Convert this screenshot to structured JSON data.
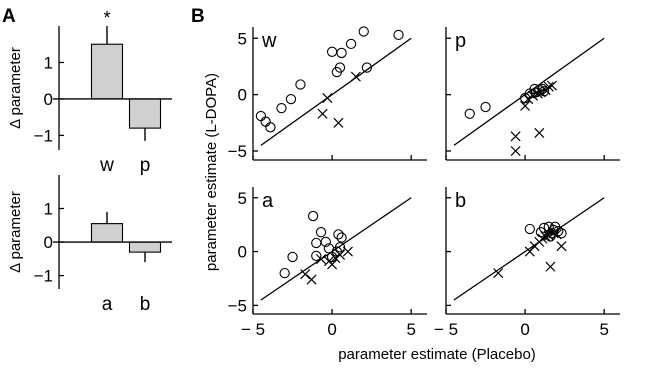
{
  "panel_labels": {
    "a": "A",
    "b": "B"
  },
  "chart_data": [
    {
      "type": "bar",
      "panel": "A-top",
      "categories": [
        "w",
        "p"
      ],
      "values": [
        1.5,
        -0.8
      ],
      "errors": [
        0.5,
        0.35
      ],
      "significance": [
        "*",
        ""
      ],
      "ylabel": "Δ parameter",
      "ylim": [
        -1.4,
        2.0
      ],
      "yticks": [
        -1,
        0,
        1
      ],
      "ytick_labels": [
        "−1",
        "0",
        "1"
      ]
    },
    {
      "type": "bar",
      "panel": "A-bottom",
      "categories": [
        "a",
        "b"
      ],
      "values": [
        0.55,
        -0.3
      ],
      "errors": [
        0.35,
        0.3
      ],
      "significance": [
        "",
        ""
      ],
      "ylabel": "Δ parameter",
      "ylim": [
        -1.4,
        2.0
      ],
      "yticks": [
        -1,
        0,
        1
      ],
      "ytick_labels": [
        "−1",
        "0",
        "1"
      ]
    },
    {
      "type": "scatter",
      "panel": "B",
      "xlabel": "parameter estimate (Placebo)",
      "ylabel": "parameter estimate (L-DOPA)",
      "xlim": [
        -5,
        6
      ],
      "ylim": [
        -5.8,
        6
      ],
      "xticks": [
        -5,
        0,
        5
      ],
      "xtick_labels": [
        "− 5",
        "0",
        "5"
      ],
      "yticks": [
        -5,
        0,
        5
      ],
      "ytick_labels": [
        "−5",
        "0",
        "5"
      ],
      "identity_line": [
        -4.5,
        5
      ],
      "subplots": [
        {
          "name": "w",
          "circles": [
            [
              -4.5,
              -1.9
            ],
            [
              -4.2,
              -2.4
            ],
            [
              -3.9,
              -2.9
            ],
            [
              -3.2,
              -1.2
            ],
            [
              -2.6,
              -0.4
            ],
            [
              -2.0,
              0.9
            ],
            [
              0,
              3.8
            ],
            [
              0.3,
              2.0
            ],
            [
              0.5,
              2.4
            ],
            [
              0.6,
              3.7
            ],
            [
              1.2,
              4.5
            ],
            [
              2.0,
              5.6
            ],
            [
              2.2,
              2.4
            ],
            [
              4.2,
              5.3
            ]
          ],
          "crosses": [
            [
              -0.3,
              -0.3
            ],
            [
              -0.6,
              -1.7
            ],
            [
              0.4,
              -2.5
            ],
            [
              1.5,
              1.6
            ]
          ]
        },
        {
          "name": "p",
          "circles": [
            [
              -3.5,
              -1.7
            ],
            [
              -2.5,
              -1.1
            ],
            [
              0.0,
              -0.3
            ],
            [
              0.3,
              0.1
            ],
            [
              0.6,
              0.5
            ],
            [
              0.7,
              0.2
            ],
            [
              0.9,
              0.4
            ],
            [
              1.1,
              0.5
            ],
            [
              1.2,
              0.3
            ]
          ],
          "crosses": [
            [
              -0.6,
              -3.7
            ],
            [
              -0.6,
              -5.0
            ],
            [
              0.0,
              -1.0
            ],
            [
              0.2,
              -0.4
            ],
            [
              0.5,
              -0.1
            ],
            [
              0.8,
              0.1
            ],
            [
              0.9,
              -3.4
            ],
            [
              1.0,
              0.2
            ],
            [
              1.3,
              0.4
            ],
            [
              1.5,
              0.7
            ],
            [
              1.7,
              0.8
            ]
          ]
        },
        {
          "name": "a",
          "circles": [
            [
              -3.0,
              -2.0
            ],
            [
              -2.5,
              -0.5
            ],
            [
              -1.2,
              3.3
            ],
            [
              -1.0,
              0.8
            ],
            [
              -1.0,
              -0.4
            ],
            [
              -0.7,
              1.8
            ],
            [
              -0.4,
              0.9
            ],
            [
              -0.2,
              0.3
            ],
            [
              0.0,
              -0.5
            ],
            [
              0.4,
              1.6
            ],
            [
              0.5,
              0.4
            ],
            [
              0.6,
              1.3
            ],
            [
              0.3,
              0.0
            ]
          ],
          "crosses": [
            [
              -1.7,
              -2.1
            ],
            [
              -1.3,
              -2.6
            ],
            [
              -0.7,
              -0.7
            ],
            [
              -0.2,
              -0.9
            ],
            [
              0.0,
              -1.2
            ],
            [
              0.2,
              -0.6
            ],
            [
              0.5,
              -0.3
            ],
            [
              1.0,
              0.0
            ]
          ]
        },
        {
          "name": "b",
          "circles": [
            [
              0.3,
              2.1
            ],
            [
              1.0,
              1.8
            ],
            [
              1.2,
              2.2
            ],
            [
              1.5,
              2.3
            ],
            [
              1.7,
              1.7
            ],
            [
              1.8,
              2.0
            ],
            [
              1.9,
              2.3
            ],
            [
              2.1,
              1.9
            ],
            [
              2.3,
              1.7
            ],
            [
              1.6,
              1.4
            ]
          ],
          "crosses": [
            [
              -1.7,
              -2.0
            ],
            [
              0.3,
              0.0
            ],
            [
              0.6,
              0.5
            ],
            [
              0.9,
              0.9
            ],
            [
              1.1,
              1.2
            ],
            [
              1.3,
              1.4
            ],
            [
              1.5,
              1.5
            ],
            [
              1.6,
              -1.4
            ],
            [
              1.8,
              1.7
            ],
            [
              2.0,
              1.6
            ],
            [
              2.3,
              0.5
            ]
          ]
        }
      ]
    }
  ]
}
